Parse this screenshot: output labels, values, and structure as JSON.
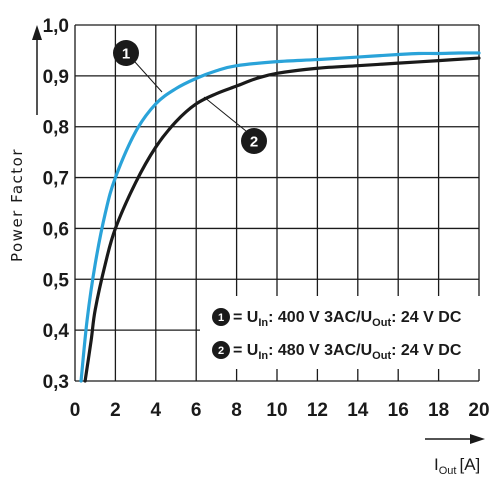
{
  "chart_data": {
    "type": "line",
    "ylabel": "Power Factor",
    "xlabel_main": "I",
    "xlabel_sub": "Out",
    "xlabel_unit": "[A]",
    "x_ticks": [
      "0",
      "2",
      "4",
      "6",
      "8",
      "10",
      "12",
      "14",
      "16",
      "18",
      "20"
    ],
    "y_ticks": [
      "0,3",
      "0,4",
      "0,5",
      "0,6",
      "0,7",
      "0,8",
      "0,9",
      "1,0"
    ],
    "xlim": [
      0,
      20
    ],
    "ylim": [
      0.3,
      1.0
    ],
    "grid": true,
    "legend_position": "bottom-right",
    "colors": {
      "series_1": "#2aa3d9",
      "series_2": "#1a1a1a",
      "grid": "#1a1a1a"
    },
    "series": [
      {
        "number": "1",
        "label": {
          "pre": "= U",
          "sub1": "In",
          "mid": ": 400 V 3AC/U",
          "sub2": "Out",
          "post": ": 24 V DC"
        },
        "x": [
          0.3,
          0.6,
          1,
          1.5,
          2,
          3,
          4,
          5,
          6,
          7,
          8,
          10,
          12,
          14,
          16,
          17,
          18,
          19,
          20
        ],
        "y": [
          0.3,
          0.42,
          0.53,
          0.63,
          0.7,
          0.79,
          0.845,
          0.875,
          0.895,
          0.91,
          0.92,
          0.928,
          0.932,
          0.937,
          0.942,
          0.944,
          0.944,
          0.945,
          0.945
        ]
      },
      {
        "number": "2",
        "label": {
          "pre": "= U",
          "sub1": "In",
          "mid": ": 480 V 3AC/U",
          "sub2": "Out",
          "post": ": 24 V DC"
        },
        "x": [
          0.5,
          0.8,
          1,
          1.5,
          2,
          3,
          4,
          5,
          6,
          7,
          8,
          9,
          10,
          12,
          14,
          16,
          18,
          20
        ],
        "y": [
          0.3,
          0.38,
          0.44,
          0.53,
          0.6,
          0.69,
          0.76,
          0.81,
          0.845,
          0.865,
          0.88,
          0.895,
          0.905,
          0.915,
          0.92,
          0.925,
          0.93,
          0.935
        ]
      }
    ]
  }
}
